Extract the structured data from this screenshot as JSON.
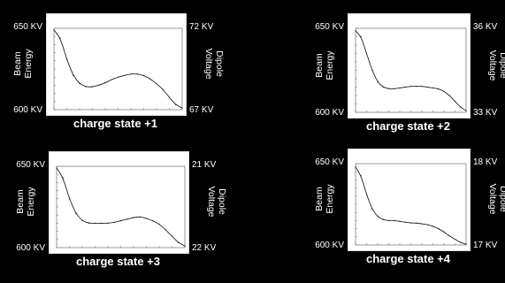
{
  "labels": {
    "left_axis": [
      "Beam",
      "Energy"
    ],
    "right_axis": [
      "Dipole",
      "Voltage"
    ]
  },
  "chart_data": [
    {
      "type": "line",
      "title": "charge state +1",
      "left_ticks": [
        "650 KV",
        "600 KV"
      ],
      "right_ticks": [
        "72 KV",
        "67 KV"
      ],
      "x": [
        0,
        0.05,
        0.1,
        0.15,
        0.2,
        0.25,
        0.3,
        0.35,
        0.4,
        0.45,
        0.5,
        0.55,
        0.6,
        0.65,
        0.7,
        0.75,
        0.8,
        0.85,
        0.9,
        0.95,
        1.0
      ],
      "y": [
        0.98,
        0.88,
        0.62,
        0.42,
        0.32,
        0.28,
        0.28,
        0.3,
        0.33,
        0.37,
        0.4,
        0.42,
        0.44,
        0.44,
        0.42,
        0.38,
        0.32,
        0.25,
        0.15,
        0.06,
        0.02
      ],
      "ylim": [
        0,
        1
      ]
    },
    {
      "type": "line",
      "title": "charge state +2",
      "left_ticks": [
        "650 KV",
        "600 KV"
      ],
      "right_ticks": [
        "36 KV",
        "33 KV"
      ],
      "x": [
        0,
        0.05,
        0.1,
        0.15,
        0.2,
        0.25,
        0.3,
        0.35,
        0.4,
        0.45,
        0.5,
        0.55,
        0.6,
        0.65,
        0.7,
        0.75,
        0.8,
        0.85,
        0.9,
        0.95,
        1.0
      ],
      "y": [
        0.97,
        0.9,
        0.7,
        0.5,
        0.36,
        0.3,
        0.28,
        0.28,
        0.29,
        0.3,
        0.31,
        0.31,
        0.31,
        0.3,
        0.29,
        0.28,
        0.25,
        0.2,
        0.13,
        0.06,
        0.02
      ],
      "ylim": [
        0,
        1
      ]
    },
    {
      "type": "line",
      "title": "charge state +3",
      "left_ticks": [
        "650 KV",
        "600 KV"
      ],
      "right_ticks": [
        "21 KV",
        "22 KV"
      ],
      "x": [
        0,
        0.05,
        0.1,
        0.15,
        0.2,
        0.25,
        0.3,
        0.35,
        0.4,
        0.45,
        0.5,
        0.55,
        0.6,
        0.65,
        0.7,
        0.75,
        0.8,
        0.85,
        0.9,
        0.95,
        1.0
      ],
      "y": [
        0.98,
        0.86,
        0.6,
        0.42,
        0.33,
        0.3,
        0.3,
        0.3,
        0.3,
        0.31,
        0.33,
        0.35,
        0.37,
        0.38,
        0.36,
        0.33,
        0.29,
        0.22,
        0.14,
        0.06,
        0.02
      ],
      "ylim": [
        0,
        1
      ]
    },
    {
      "type": "line",
      "title": "charge state +4",
      "left_ticks": [
        "650 KV",
        "600 KV"
      ],
      "right_ticks": [
        "18 KV",
        "17 KV"
      ],
      "x": [
        0,
        0.05,
        0.1,
        0.15,
        0.2,
        0.25,
        0.3,
        0.35,
        0.4,
        0.45,
        0.5,
        0.55,
        0.6,
        0.65,
        0.7,
        0.75,
        0.8,
        0.85,
        0.9,
        0.95,
        1.0
      ],
      "y": [
        0.96,
        0.85,
        0.62,
        0.44,
        0.35,
        0.31,
        0.3,
        0.3,
        0.29,
        0.28,
        0.27,
        0.27,
        0.26,
        0.25,
        0.23,
        0.2,
        0.16,
        0.11,
        0.07,
        0.03,
        0.01
      ],
      "ylim": [
        0,
        1
      ]
    }
  ]
}
